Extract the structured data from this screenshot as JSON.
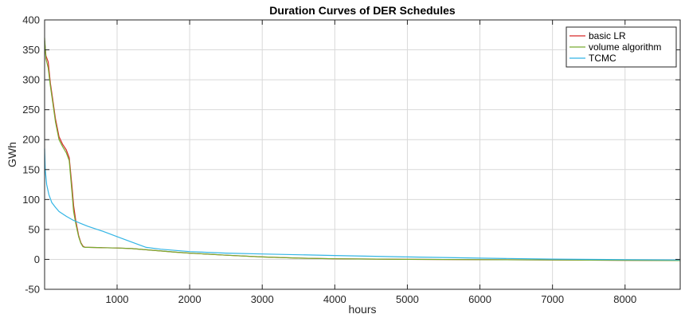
{
  "chart_data": {
    "type": "line",
    "title": "Duration Curves of DER Schedules",
    "xlabel": "hours",
    "ylabel": "GWh",
    "xlim": [
      1,
      8760
    ],
    "ylim": [
      -50,
      400
    ],
    "xticks": [
      1000,
      2000,
      3000,
      4000,
      5000,
      6000,
      7000,
      8000
    ],
    "yticks": [
      -50,
      0,
      50,
      100,
      150,
      200,
      250,
      300,
      350,
      400
    ],
    "grid": true,
    "legend_position": "top-right",
    "series": [
      {
        "name": "basic LR",
        "color": "#d62728",
        "x": [
          1,
          20,
          50,
          80,
          110,
          150,
          200,
          250,
          300,
          340,
          380,
          400,
          430,
          470,
          500,
          530,
          560,
          600,
          800,
          1000,
          1200,
          1400,
          1600,
          1800,
          2000,
          2500,
          3000,
          3500,
          4000,
          5000,
          6000,
          7000,
          8000,
          8760
        ],
        "y": [
          365,
          340,
          330,
          295,
          270,
          235,
          205,
          192,
          183,
          170,
          120,
          90,
          65,
          40,
          28,
          22,
          20,
          20,
          19.5,
          19,
          18,
          16,
          14,
          12,
          10.5,
          7,
          4,
          2,
          1,
          0,
          -0.5,
          -1,
          -1.5,
          -2
        ]
      },
      {
        "name": "volume algorithm",
        "color": "#77ac30",
        "x": [
          1,
          20,
          50,
          80,
          110,
          150,
          200,
          250,
          300,
          340,
          380,
          400,
          430,
          470,
          500,
          530,
          560,
          600,
          800,
          1000,
          1200,
          1400,
          1600,
          1800,
          2000,
          2500,
          3000,
          3500,
          4000,
          5000,
          6000,
          7000,
          8000,
          8760
        ],
        "y": [
          370,
          335,
          320,
          290,
          265,
          230,
          200,
          188,
          178,
          165,
          110,
          80,
          60,
          38,
          27,
          21,
          20,
          20,
          19.5,
          19,
          18,
          16,
          14,
          12,
          10.5,
          7,
          4,
          2,
          1,
          0,
          -0.5,
          -1,
          -1.5,
          -2
        ]
      },
      {
        "name": "TCMC",
        "color": "#33b5e5",
        "x": [
          1,
          10,
          30,
          60,
          100,
          150,
          200,
          300,
          400,
          500,
          600,
          800,
          1000,
          1200,
          1400,
          1600,
          1800,
          2000,
          2500,
          3000,
          4000,
          5000,
          6000,
          7000,
          8000,
          8760
        ],
        "y": [
          185,
          150,
          125,
          108,
          95,
          87,
          80,
          72,
          65,
          60,
          55,
          47,
          38,
          29,
          20,
          17,
          15,
          13,
          10.5,
          9,
          6.5,
          4,
          2,
          0.5,
          -0.5,
          -1
        ]
      }
    ]
  }
}
